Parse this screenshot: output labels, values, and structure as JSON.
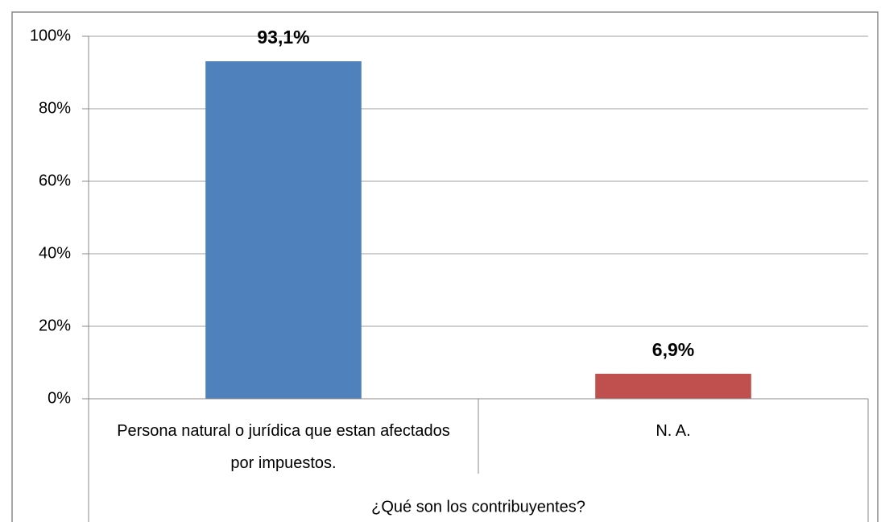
{
  "chart_data": {
    "type": "bar",
    "categories": [
      "Persona natural o jurídica que estan afectados por impuestos.",
      "N. A."
    ],
    "values": [
      93.1,
      6.9
    ],
    "value_labels": [
      "93,1%",
      "6,9%"
    ],
    "colors": [
      "#4f81bd",
      "#c0504d"
    ],
    "xlabel": "¿Qué son los contribuyentes?",
    "ylim": [
      0,
      100
    ],
    "yticks": [
      {
        "value": 0,
        "label": "0%"
      },
      {
        "value": 20,
        "label": "20%"
      },
      {
        "value": 40,
        "label": "40%"
      },
      {
        "value": 60,
        "label": "60%"
      },
      {
        "value": 80,
        "label": "80%"
      },
      {
        "value": 100,
        "label": "100%"
      }
    ],
    "grid": true
  }
}
